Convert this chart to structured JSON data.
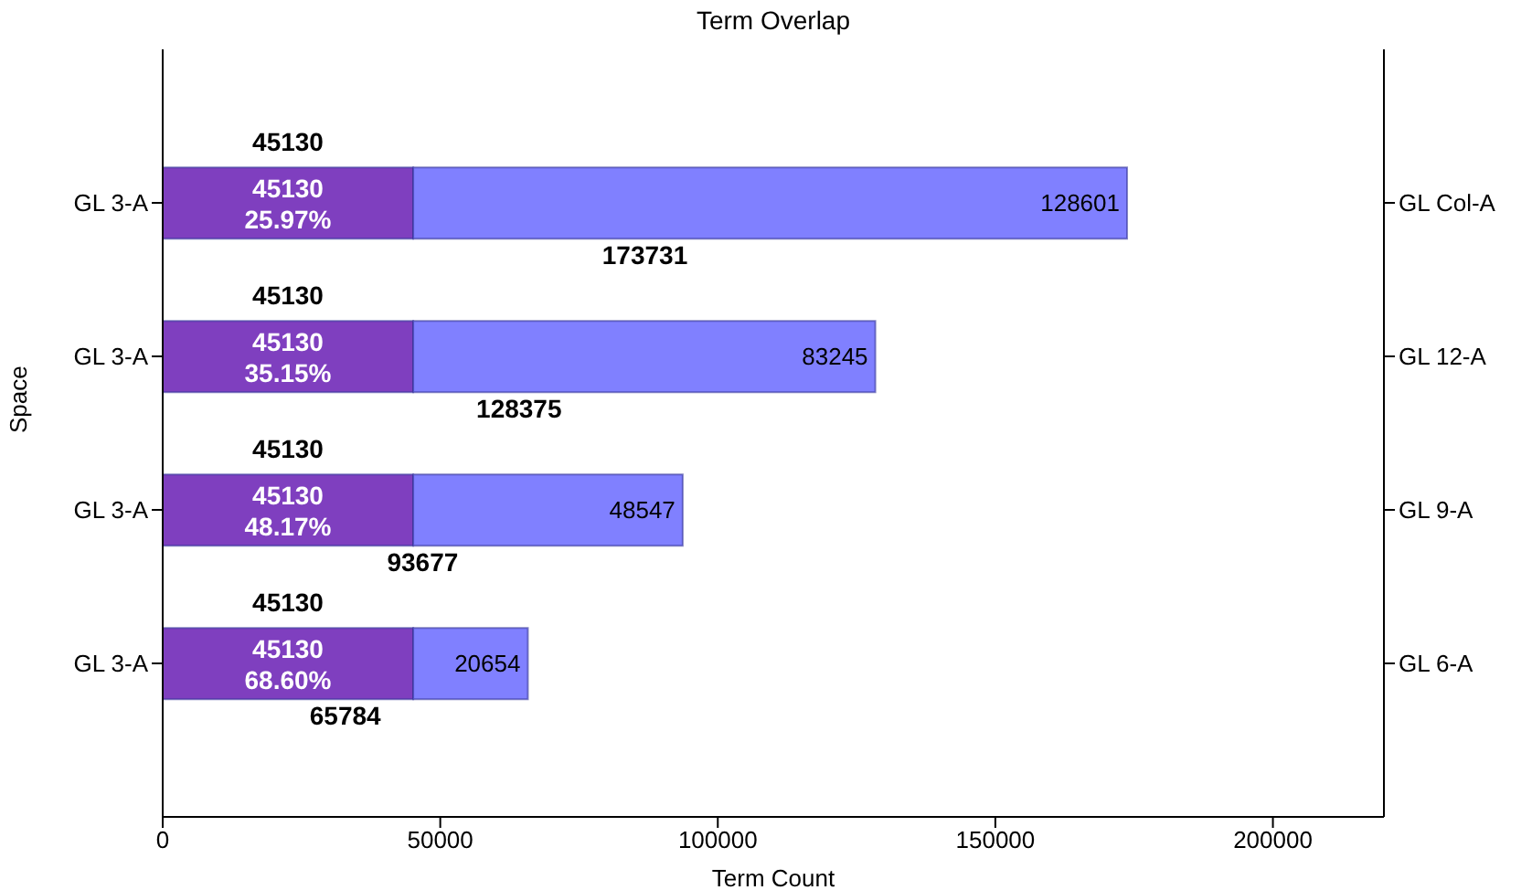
{
  "chart_data": {
    "type": "bar",
    "orientation": "horizontal",
    "stacked": true,
    "title": "Term Overlap",
    "xlabel": "Term Count",
    "ylabel": "Space",
    "categories": [
      "GL 3-A",
      "GL 3-A",
      "GL 3-A",
      "GL 3-A"
    ],
    "y2_categories": [
      "GL Col-A",
      "GL 12-A",
      "GL 9-A",
      "GL 6-A"
    ],
    "series": [
      {
        "color": "#7f3fbf",
        "values": [
          45130,
          45130,
          45130,
          45130
        ],
        "value_labels": [
          "45130\n25.97%",
          "45130\n35.15%",
          "45130\n48.17%",
          "45130\n68.60%"
        ]
      },
      {
        "color": "#8080ff",
        "values": [
          128601,
          83245,
          48547,
          20654
        ],
        "value_labels": [
          "128601",
          "83245",
          "48547",
          "20654"
        ]
      }
    ],
    "totals": [
      "173731",
      "128375",
      "93677",
      "65784"
    ],
    "annotations": [
      "45130",
      "45130",
      "45130",
      "45130"
    ],
    "xlim": [
      0,
      220000
    ],
    "xticks": [
      0,
      50000,
      100000,
      150000,
      200000
    ],
    "grid": false,
    "legend": false
  }
}
